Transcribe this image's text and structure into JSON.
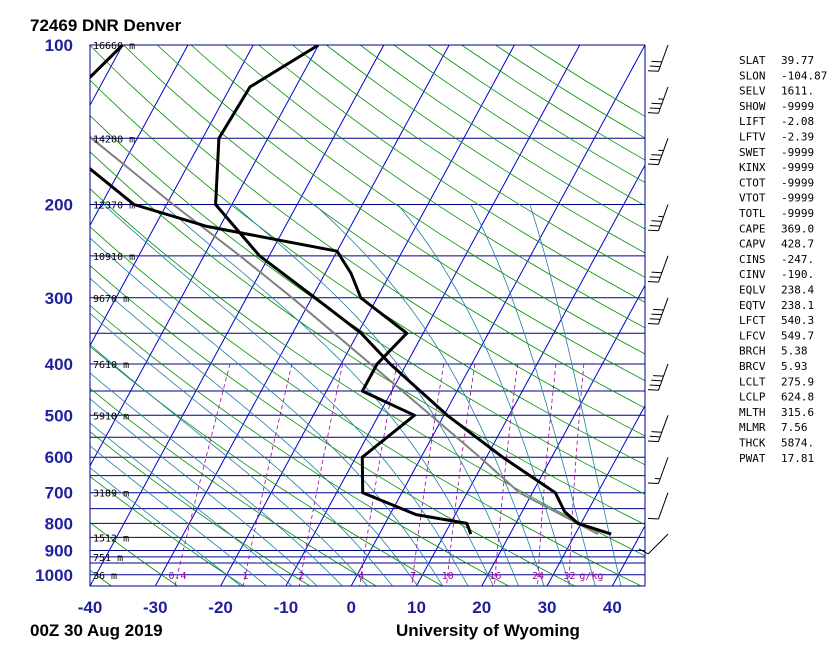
{
  "header": {
    "title": "72469 DNR Denver"
  },
  "footer": {
    "left": "00Z 30 Aug 2019",
    "right": "University of Wyoming"
  },
  "chart_data": {
    "type": "skew-t",
    "pressure_ticks": [
      {
        "p": 100,
        "label": "100"
      },
      {
        "p": 200,
        "label": "200"
      },
      {
        "p": 300,
        "label": "300"
      },
      {
        "p": 400,
        "label": "400"
      },
      {
        "p": 500,
        "label": "500"
      },
      {
        "p": 600,
        "label": "600"
      },
      {
        "p": 700,
        "label": "700"
      },
      {
        "p": 800,
        "label": "800"
      },
      {
        "p": 900,
        "label": "900"
      },
      {
        "p": 1000,
        "label": "1000"
      }
    ],
    "temp_ticks": [
      "-40",
      "-30",
      "-20",
      "-10",
      "0",
      "10",
      "20",
      "30",
      "40"
    ],
    "heights": [
      {
        "p": 100,
        "label": "16660 m"
      },
      {
        "p": 150,
        "label": "14200 m"
      },
      {
        "p": 200,
        "label": "12370 m"
      },
      {
        "p": 250,
        "label": "10910 m"
      },
      {
        "p": 300,
        "label": "9670 m"
      },
      {
        "p": 400,
        "label": "7610 m"
      },
      {
        "p": 500,
        "label": "5910 m"
      },
      {
        "p": 700,
        "label": "3189 m"
      },
      {
        "p": 850,
        "label": "1512 m"
      },
      {
        "p": 925,
        "label": "751 m"
      },
      {
        "p": 1000,
        "label": "36 m"
      }
    ],
    "mixing_ratio_labels": [
      "0.4",
      "1",
      "2",
      "4",
      "7",
      "10",
      "16",
      "24",
      "32",
      "g/kg"
    ],
    "temperature": [
      {
        "p": 838,
        "t": 35.5
      },
      {
        "p": 800,
        "t": 29.5
      },
      {
        "p": 760,
        "t": 26.5
      },
      {
        "p": 700,
        "t": 23.5
      },
      {
        "p": 600,
        "t": 12.5
      },
      {
        "p": 500,
        "t": 0.5
      },
      {
        "p": 400,
        "t": -12.5
      },
      {
        "p": 350,
        "t": -19.5
      },
      {
        "p": 300,
        "t": -29.5
      },
      {
        "p": 250,
        "t": -41.5
      },
      {
        "p": 200,
        "t": -52.5
      },
      {
        "p": 150,
        "t": -57.5
      },
      {
        "p": 120,
        "t": -57
      },
      {
        "p": 100,
        "t": -50
      }
    ],
    "dewpoint": [
      {
        "p": 838,
        "t": 14
      },
      {
        "p": 800,
        "t": 12.5
      },
      {
        "p": 770,
        "t": 4
      },
      {
        "p": 700,
        "t": -6
      },
      {
        "p": 600,
        "t": -9
      },
      {
        "p": 500,
        "t": -4.5
      },
      {
        "p": 450,
        "t": -14.5
      },
      {
        "p": 400,
        "t": -14.5
      },
      {
        "p": 350,
        "t": -12.5
      },
      {
        "p": 300,
        "t": -22.5
      },
      {
        "p": 270,
        "t": -26
      },
      {
        "p": 245,
        "t": -30
      },
      {
        "p": 220,
        "t": -52
      },
      {
        "p": 200,
        "t": -65
      },
      {
        "p": 150,
        "t": -83
      },
      {
        "p": 120,
        "t": -83
      },
      {
        "p": 100,
        "t": -80
      }
    ],
    "parcel": [
      {
        "p": 838,
        "t": 33.5
      },
      {
        "p": 700,
        "t": 18
      },
      {
        "p": 600,
        "t": 9
      },
      {
        "p": 500,
        "t": -2
      },
      {
        "p": 400,
        "t": -15.5
      },
      {
        "p": 300,
        "t": -33
      },
      {
        "p": 250,
        "t": -44.5
      },
      {
        "p": 200,
        "t": -59
      },
      {
        "p": 150,
        "t": -77
      },
      {
        "p": 100,
        "t": -101
      }
    ],
    "wind_barbs": [
      {
        "p": 838,
        "dir": 225,
        "spd": 10
      },
      {
        "p": 700,
        "dir": 200,
        "spd": 10
      },
      {
        "p": 600,
        "dir": 200,
        "spd": 15
      },
      {
        "p": 500,
        "dir": 200,
        "spd": 30
      },
      {
        "p": 400,
        "dir": 200,
        "spd": 40
      },
      {
        "p": 300,
        "dir": 200,
        "spd": 40
      },
      {
        "p": 250,
        "dir": 200,
        "spd": 30
      },
      {
        "p": 200,
        "dir": 200,
        "spd": 35
      },
      {
        "p": 150,
        "dir": 200,
        "spd": 35
      },
      {
        "p": 120,
        "dir": 200,
        "spd": 35
      },
      {
        "p": 100,
        "dir": 200,
        "spd": 30
      }
    ],
    "colors": {
      "isobar": "#00008b",
      "isotherm": "#0000cd",
      "dry_adiabat": "#009000",
      "moist_adiabat": "#1e7fa0",
      "mixing_ratio": "#a000a0",
      "parcel": "#808080",
      "sounding": "#000000",
      "tick_text": "#1f1f9f"
    }
  },
  "indices": [
    {
      "name": "SLAT",
      "value": "39.77"
    },
    {
      "name": "SLON",
      "value": "-104.87"
    },
    {
      "name": "SELV",
      "value": "1611."
    },
    {
      "name": "SHOW",
      "value": "-9999"
    },
    {
      "name": "LIFT",
      "value": "-2.08"
    },
    {
      "name": "LFTV",
      "value": "-2.39"
    },
    {
      "name": "SWET",
      "value": "-9999"
    },
    {
      "name": "KINX",
      "value": "-9999"
    },
    {
      "name": "CTOT",
      "value": "-9999"
    },
    {
      "name": "VTOT",
      "value": "-9999"
    },
    {
      "name": "TOTL",
      "value": "-9999"
    },
    {
      "name": "CAPE",
      "value": "369.0"
    },
    {
      "name": "CAPV",
      "value": "428.7"
    },
    {
      "name": "CINS",
      "value": "-247."
    },
    {
      "name": "CINV",
      "value": "-190."
    },
    {
      "name": "EQLV",
      "value": "238.4"
    },
    {
      "name": "EQTV",
      "value": "238.1"
    },
    {
      "name": "LFCT",
      "value": "540.3"
    },
    {
      "name": "LFCV",
      "value": "549.7"
    },
    {
      "name": "BRCH",
      "value": "5.38"
    },
    {
      "name": "BRCV",
      "value": "5.93"
    },
    {
      "name": "LCLT",
      "value": "275.9"
    },
    {
      "name": "LCLP",
      "value": "624.8"
    },
    {
      "name": "MLTH",
      "value": "315.6"
    },
    {
      "name": "MLMR",
      "value": "7.56"
    },
    {
      "name": "THCK",
      "value": "5874."
    },
    {
      "name": "PWAT",
      "value": "17.81"
    }
  ]
}
